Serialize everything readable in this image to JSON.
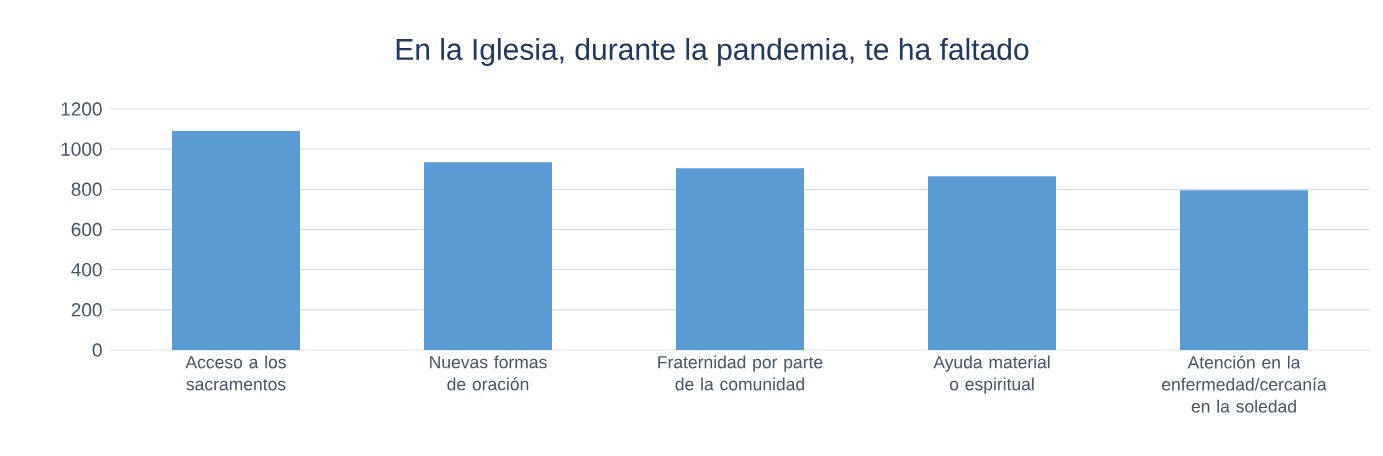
{
  "chart_data": {
    "type": "bar",
    "title": "En la Iglesia, durante la pandemia, te ha faltado",
    "categories": [
      "Acceso a los sacramentos",
      "Nuevas formas de oración",
      "Fraternidad por parte de la comunidad",
      "Ayuda material o espiritual",
      "Atención en la enfermedad/cercanía en la soledad"
    ],
    "values": [
      1090,
      935,
      905,
      865,
      795
    ],
    "color": "#5b9bd5",
    "ylim": [
      0,
      1200
    ],
    "yticks": [
      0,
      200,
      400,
      600,
      800,
      1000,
      1200
    ],
    "grid": "y"
  }
}
